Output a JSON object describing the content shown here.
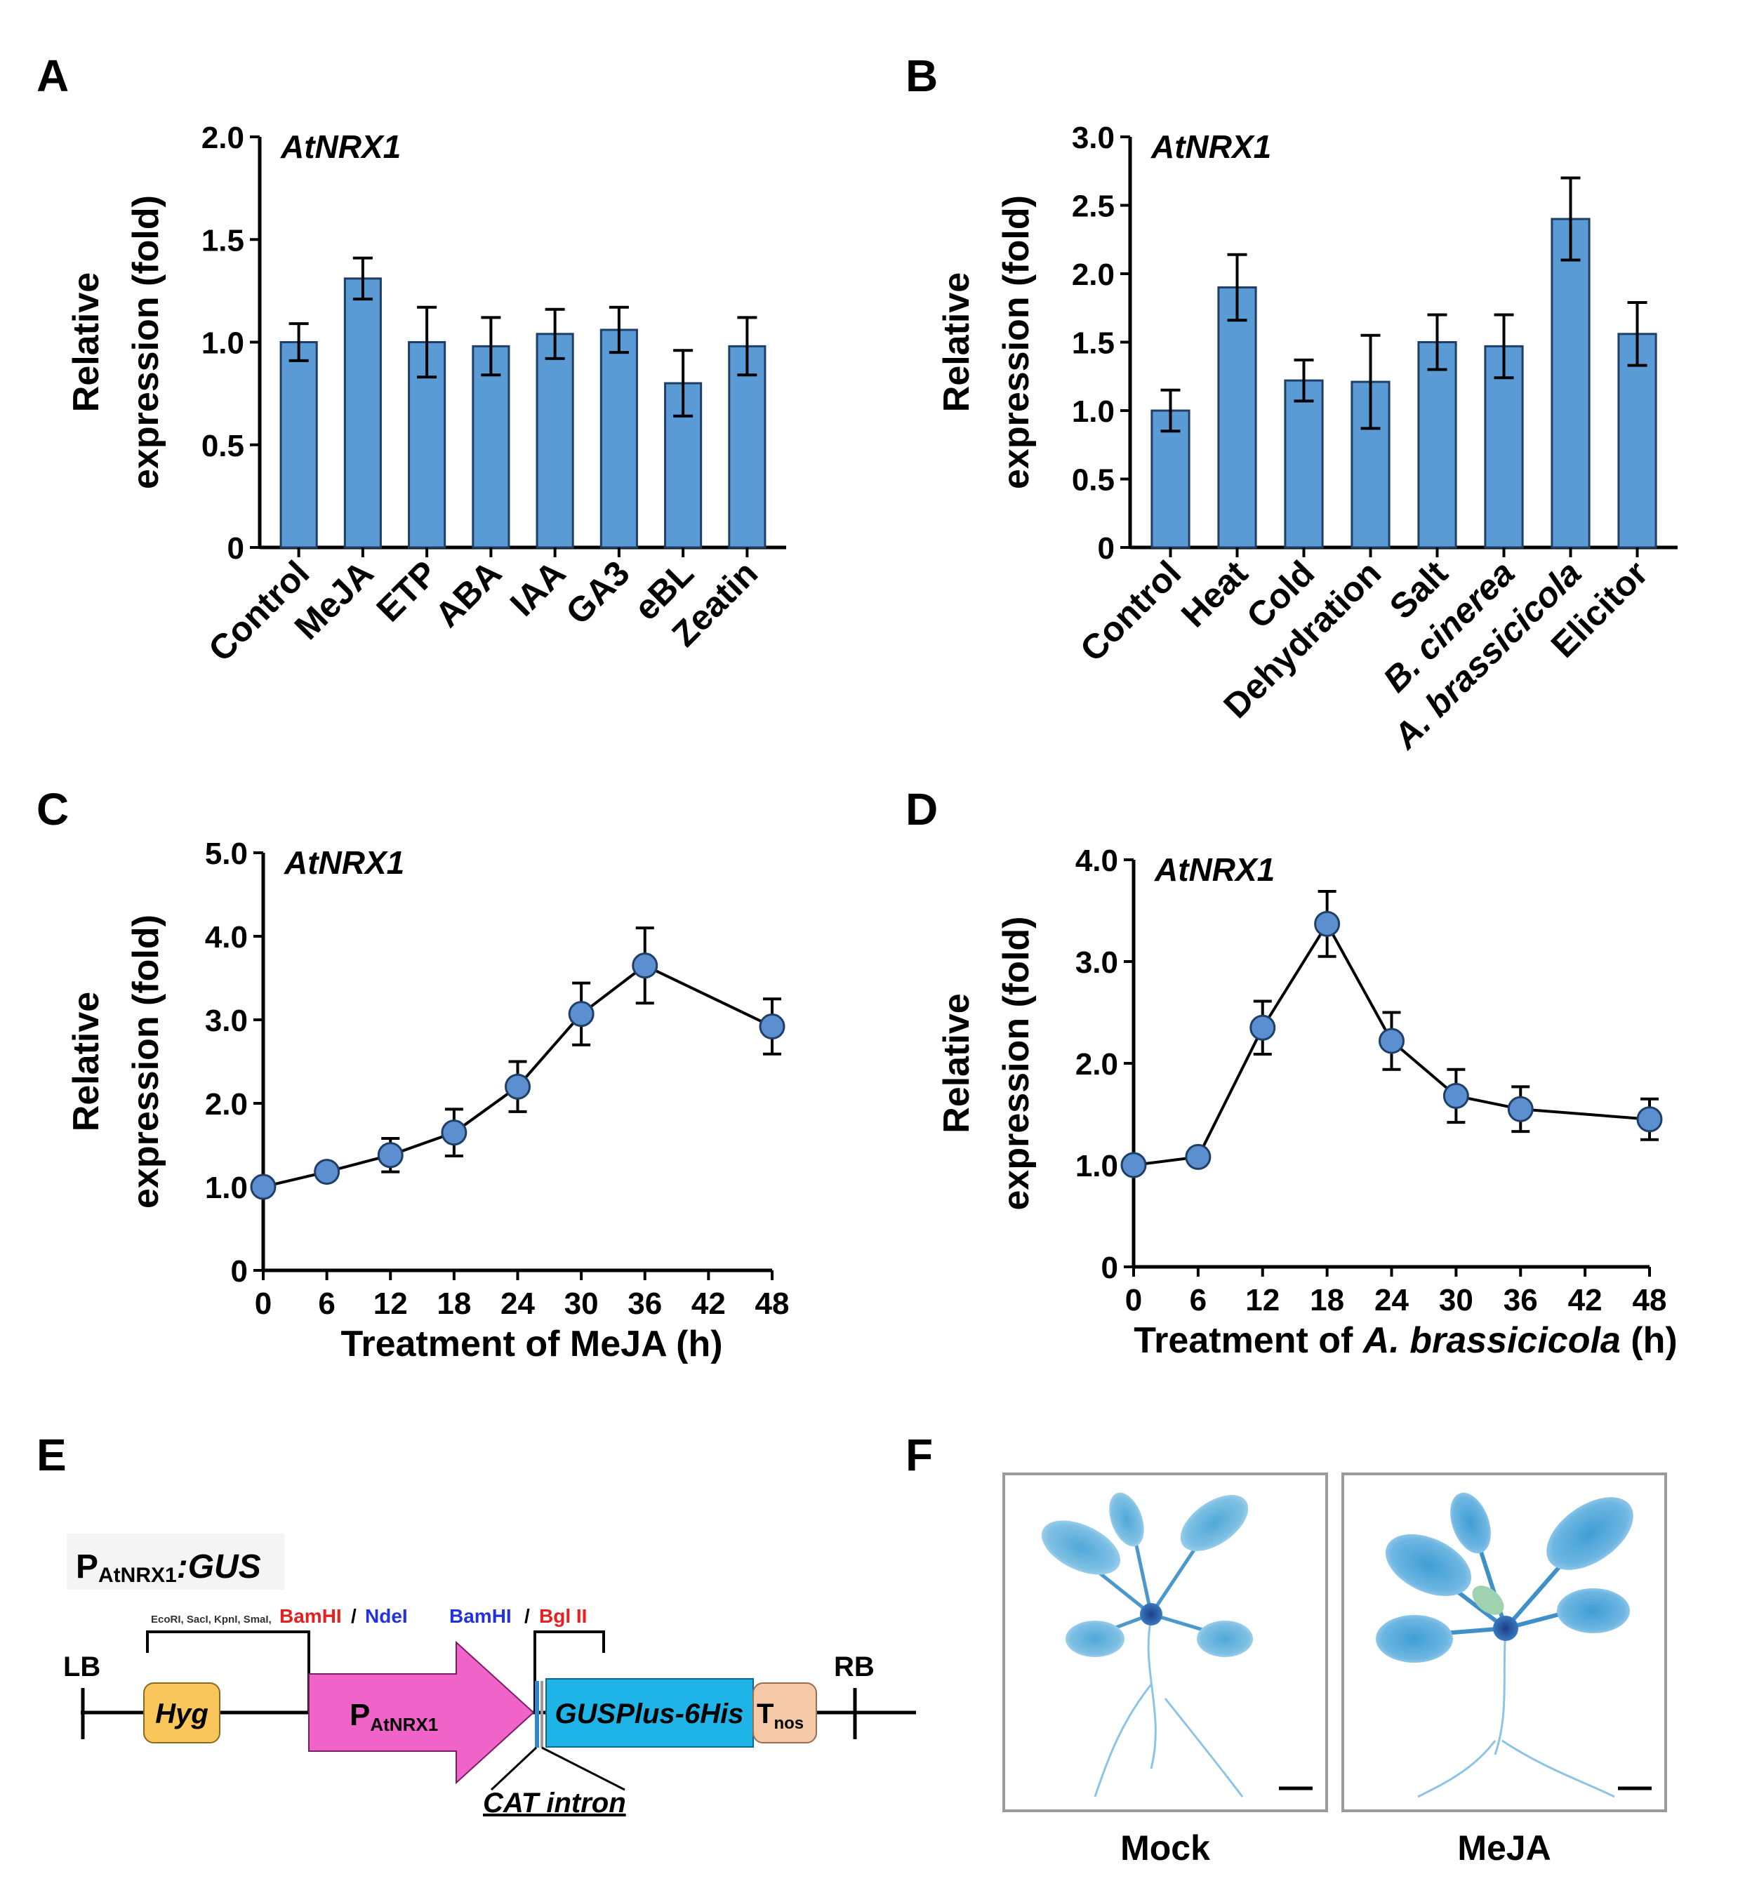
{
  "panel_labels": [
    "A",
    "B",
    "C",
    "D",
    "E",
    "F"
  ],
  "colors": {
    "bar": "#5b9bd5",
    "point": "#5b8fd0",
    "axis": "#000000",
    "pink": "#f063c8",
    "cyan": "#1eb4e8",
    "hyg": "#f8c65a",
    "tnos": "#f5c9a8",
    "red": "#e81f1f",
    "blue": "#2233dd"
  },
  "chart_data": [
    {
      "id": "A",
      "type": "bar",
      "gene": "AtNRX1",
      "ylabel": [
        "Relative",
        "expression (fold)"
      ],
      "ylim": [
        0,
        2.0
      ],
      "yticks": [
        "0",
        "0.5",
        "1.0",
        "1.5",
        "2.0"
      ],
      "categories": [
        "Control",
        "MeJA",
        "ETP",
        "ABA",
        "IAA",
        "GA3",
        "eBL",
        "Zeatin"
      ],
      "values": [
        1.0,
        1.31,
        1.0,
        0.98,
        1.04,
        1.06,
        0.8,
        0.98
      ],
      "errors": [
        0.09,
        0.1,
        0.17,
        0.14,
        0.12,
        0.11,
        0.16,
        0.14
      ]
    },
    {
      "id": "B",
      "type": "bar",
      "gene": "AtNRX1",
      "ylabel": [
        "Relative",
        "expression (fold)"
      ],
      "ylim": [
        0,
        3.0
      ],
      "yticks": [
        "0",
        "0.5",
        "1.0",
        "1.5",
        "2.0",
        "2.5",
        "3.0"
      ],
      "categories": [
        "Control",
        "Heat",
        "Cold",
        "Dehydration",
        "Salt",
        "B. cinerea",
        "A. brassicicola",
        "Elicitor"
      ],
      "values": [
        1.0,
        1.9,
        1.22,
        1.21,
        1.5,
        1.47,
        2.4,
        1.56
      ],
      "errors": [
        0.15,
        0.24,
        0.15,
        0.34,
        0.2,
        0.23,
        0.3,
        0.23
      ]
    },
    {
      "id": "C",
      "type": "line",
      "gene": "AtNRX1",
      "ylabel": [
        "Relative",
        "expression (fold)"
      ],
      "xlabel": "Treatment of MeJA (h)",
      "xlim": [
        0,
        48
      ],
      "xticks": [
        "0",
        "6",
        "12",
        "18",
        "24",
        "30",
        "36",
        "42",
        "48"
      ],
      "ylim": [
        0,
        5.0
      ],
      "yticks": [
        "0",
        "1.0",
        "2.0",
        "3.0",
        "4.0",
        "5.0"
      ],
      "x": [
        0,
        6,
        12,
        18,
        24,
        30,
        36,
        48
      ],
      "y": [
        1.0,
        1.18,
        1.38,
        1.65,
        2.2,
        3.07,
        3.65,
        2.92
      ],
      "errors": [
        0.04,
        0.08,
        0.2,
        0.28,
        0.3,
        0.37,
        0.45,
        0.33
      ]
    },
    {
      "id": "D",
      "type": "line",
      "gene": "AtNRX1",
      "ylabel": [
        "Relative",
        "expression (fold)"
      ],
      "xlabel_parts": [
        "Treatment of ",
        "A. brassicicola",
        " (h)"
      ],
      "xlim": [
        0,
        48
      ],
      "xticks": [
        "0",
        "6",
        "12",
        "18",
        "24",
        "30",
        "36",
        "42",
        "48"
      ],
      "ylim": [
        0,
        4.0
      ],
      "yticks": [
        "0",
        "1.0",
        "2.0",
        "3.0",
        "4.0"
      ],
      "x": [
        0,
        6,
        12,
        18,
        24,
        30,
        36,
        48
      ],
      "y": [
        1.0,
        1.08,
        2.35,
        3.37,
        2.22,
        1.68,
        1.55,
        1.45
      ],
      "errors": [
        0.04,
        0.08,
        0.26,
        0.32,
        0.28,
        0.26,
        0.22,
        0.2
      ]
    }
  ],
  "diagram": {
    "construct_prefix": "P",
    "construct_sub": "AtNRX1",
    "construct_suffix": ":GUS",
    "sites_left": "EcoRI, SacI, KpnI, SmaI,",
    "site_bamhi_left": "BamHI",
    "slash": "/",
    "site_ndei": "NdeI",
    "site_bamhi_right": "BamHI",
    "site_bglii": "Bgl II",
    "lb": "LB",
    "rb": "RB",
    "hyg": "Hyg",
    "promoter_main": "P",
    "promoter_sub": "AtNRX1",
    "gus": "GUSPlus-6His",
    "tnos_main": "T",
    "tnos_sub": "nos",
    "intron": "CAT intron"
  },
  "photos": {
    "left_caption": "Mock",
    "right_caption": "MeJA"
  }
}
